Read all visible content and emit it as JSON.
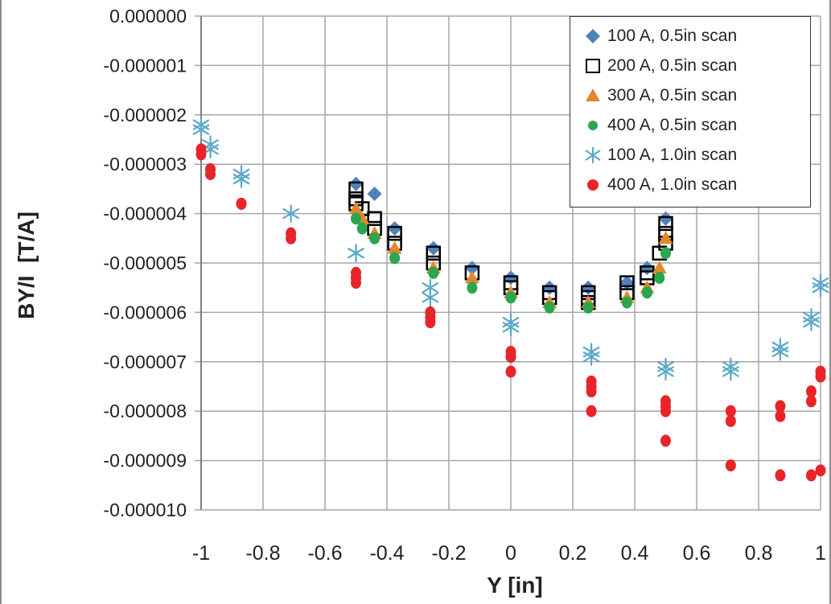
{
  "chart_data": {
    "type": "scatter",
    "title": "",
    "xlabel": "Y [in]",
    "ylabel": "BY/I  [T/A]",
    "xlim": [
      -1,
      1
    ],
    "ylim": [
      -1e-05,
      0
    ],
    "x_ticks": [
      -1,
      -0.8,
      -0.6,
      -0.4,
      -0.2,
      0,
      0.2,
      0.4,
      0.6,
      0.8,
      1
    ],
    "x_tick_labels": [
      "-1",
      "-0.8",
      "-0.6",
      "-0.4",
      "-0.2",
      "0",
      "0.2",
      "0.4",
      "0.6",
      "0.8",
      "1"
    ],
    "y_ticks": [
      0,
      -1e-06,
      -2e-06,
      -3e-06,
      -4e-06,
      -5e-06,
      -6e-06,
      -7e-06,
      -8e-06,
      -9e-06,
      -1e-05
    ],
    "y_tick_labels": [
      "0.000000",
      "-0.000001",
      "-0.000002",
      "-0.000003",
      "-0.000004",
      "-0.000005",
      "-0.000006",
      "-0.000007",
      "-0.000008",
      "-0.000009",
      "-0.000010"
    ],
    "grid": true,
    "legend_position": "top-right",
    "series": [
      {
        "name": "100 A, 0.5in scan",
        "marker": "diamond",
        "color": "#4f81bd",
        "x": [
          -0.5,
          -0.44,
          -0.375,
          -0.25,
          -0.125,
          0,
          0.125,
          0.25,
          0.375,
          0.44,
          0.5
        ],
        "y": [
          -3.4e-06,
          -3.6e-06,
          -4.3e-06,
          -4.7e-06,
          -5.1e-06,
          -5.3e-06,
          -5.5e-06,
          -5.5e-06,
          -5.4e-06,
          -5.1e-06,
          -4.1e-06
        ]
      },
      {
        "name": "200 A, 0.5in scan",
        "marker": "square-open",
        "color": "#000000",
        "x": [
          -0.5,
          -0.5,
          -0.5,
          -0.48,
          -0.44,
          -0.44,
          -0.375,
          -0.375,
          -0.25,
          -0.25,
          -0.125,
          0,
          0,
          0.125,
          0.125,
          0.25,
          0.25,
          0.25,
          0.375,
          0.375,
          0.44,
          0.44,
          0.48,
          0.5,
          0.5,
          0.5
        ],
        "y": [
          -3.5e-06,
          -3.7e-06,
          -3.8e-06,
          -3.9e-06,
          -4.1e-06,
          -4.3e-06,
          -4.4e-06,
          -4.6e-06,
          -4.8e-06,
          -5e-06,
          -5.2e-06,
          -5.4e-06,
          -5.5e-06,
          -5.6e-06,
          -5.7e-06,
          -5.6e-06,
          -5.7e-06,
          -5.8e-06,
          -5.4e-06,
          -5.6e-06,
          -5.2e-06,
          -5.3e-06,
          -4.8e-06,
          -4.2e-06,
          -4.4e-06,
          -4.6e-06
        ]
      },
      {
        "name": "300 A, 0.5in scan",
        "marker": "triangle",
        "color": "#e5862b",
        "x": [
          -0.5,
          -0.48,
          -0.44,
          -0.375,
          -0.25,
          -0.125,
          0,
          0.125,
          0.25,
          0.375,
          0.44,
          0.48,
          0.5
        ],
        "y": [
          -3.9e-06,
          -4.1e-06,
          -4.4e-06,
          -4.7e-06,
          -5.1e-06,
          -5.3e-06,
          -5.6e-06,
          -5.8e-06,
          -5.8e-06,
          -5.7e-06,
          -5.5e-06,
          -5.1e-06,
          -4.5e-06
        ]
      },
      {
        "name": "400 A, 0.5in scan",
        "marker": "circle",
        "color": "#2aa64e",
        "x": [
          -0.5,
          -0.48,
          -0.44,
          -0.375,
          -0.25,
          -0.125,
          0,
          0.125,
          0.25,
          0.375,
          0.44,
          0.48,
          0.5
        ],
        "y": [
          -4.1e-06,
          -4.3e-06,
          -4.5e-06,
          -4.9e-06,
          -5.2e-06,
          -5.5e-06,
          -5.7e-06,
          -5.9e-06,
          -5.9e-06,
          -5.8e-06,
          -5.6e-06,
          -5.3e-06,
          -4.8e-06
        ]
      },
      {
        "name": "100 A, 1.0in scan",
        "marker": "asterisk",
        "color": "#5ba8c8",
        "x": [
          -1,
          -1,
          -0.97,
          -0.97,
          -0.87,
          -0.87,
          -0.71,
          -0.5,
          -0.5,
          -0.26,
          -0.26,
          0,
          0,
          0.26,
          0.26,
          0.5,
          0.5,
          0.71,
          0.71,
          0.87,
          0.87,
          0.97,
          0.97,
          1,
          1
        ],
        "y": [
          -2.2e-06,
          -2.3e-06,
          -2.6e-06,
          -2.7e-06,
          -3.2e-06,
          -3.3e-06,
          -4e-06,
          -4.8e-06,
          -4.8e-06,
          -5.5e-06,
          -5.7e-06,
          -6.2e-06,
          -6.3e-06,
          -6.8e-06,
          -6.9e-06,
          -7.1e-06,
          -7.2e-06,
          -7.1e-06,
          -7.2e-06,
          -6.7e-06,
          -6.8e-06,
          -6.1e-06,
          -6.2e-06,
          -5.4e-06,
          -5.5e-06
        ]
      },
      {
        "name": "400 A, 1.0in scan",
        "marker": "circle",
        "color": "#e8242a",
        "x": [
          -1,
          -1,
          -0.97,
          -0.97,
          -0.87,
          -0.87,
          -0.71,
          -0.71,
          -0.5,
          -0.5,
          -0.5,
          -0.26,
          -0.26,
          -0.26,
          0,
          0,
          0,
          0.26,
          0.26,
          0.26,
          0.26,
          0.5,
          0.5,
          0.5,
          0.5,
          0.71,
          0.71,
          0.71,
          0.87,
          0.87,
          0.87,
          0.97,
          0.97,
          0.97,
          1,
          1,
          1
        ],
        "y": [
          -2.7e-06,
          -2.8e-06,
          -3.1e-06,
          -3.2e-06,
          -3.8e-06,
          -3.8e-06,
          -4.4e-06,
          -4.5e-06,
          -5.2e-06,
          -5.3e-06,
          -5.4e-06,
          -6e-06,
          -6.1e-06,
          -6.2e-06,
          -6.8e-06,
          -6.9e-06,
          -7.2e-06,
          -7.4e-06,
          -7.5e-06,
          -7.6e-06,
          -8e-06,
          -7.8e-06,
          -7.9e-06,
          -8e-06,
          -8.6e-06,
          -8e-06,
          -8.2e-06,
          -9.1e-06,
          -7.9e-06,
          -8.1e-06,
          -9.3e-06,
          -7.6e-06,
          -7.8e-06,
          -9.3e-06,
          -7.2e-06,
          -7.3e-06,
          -9.2e-06
        ]
      }
    ]
  }
}
